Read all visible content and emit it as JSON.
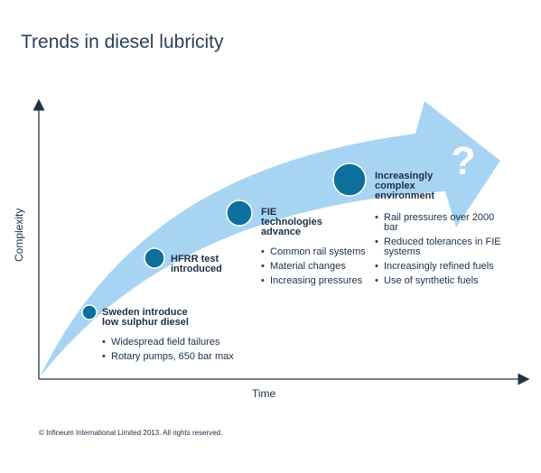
{
  "title": "Trends in diesel lubricity",
  "axes": {
    "y_label": "Complexity",
    "x_label": "Time"
  },
  "question_mark": "?",
  "milestones": [
    {
      "label_lines": [
        "Sweden introduce",
        "low sulphur diesel"
      ],
      "bullets": [
        "Widespread field failures",
        "Rotary pumps, 650 bar max"
      ]
    },
    {
      "label_lines": [
        "HFRR test",
        "introduced"
      ],
      "bullets": []
    },
    {
      "label_lines": [
        "FIE",
        "technologies",
        "advance"
      ],
      "bullets": [
        "Common rail systems",
        "Material changes",
        "Increasing pressures"
      ]
    },
    {
      "label_lines": [
        "Increasingly",
        "complex",
        "environment"
      ],
      "bullets": [
        "Rail pressures over 2000 bar",
        "Reduced tolerances in FIE systems",
        "Increasingly refined fuels",
        "Use of synthetic fuels"
      ]
    }
  ],
  "copyright": "© Infineum International Limited 2013. All rights reserved.",
  "colors": {
    "arrow": "#a8d4f3",
    "dot": "#0c6f9c",
    "dot_ring": "#ffffff",
    "axis": "#1f3347",
    "question": "#ffffff"
  }
}
